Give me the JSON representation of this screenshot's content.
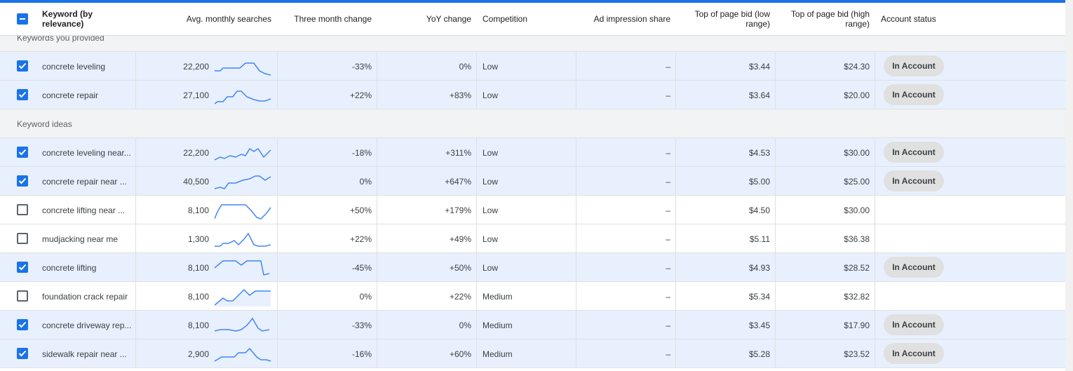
{
  "header": {
    "columns": [
      "Keyword (by relevance)",
      "Avg. monthly searches",
      "Three month change",
      "YoY change",
      "Competition",
      "Ad impression share",
      "Top of page bid (low range)",
      "Top of page bid (high range)",
      "Account status"
    ]
  },
  "sections": [
    {
      "title": "Keywords you provided",
      "rows": [
        {
          "selected": true,
          "keyword": "concrete leveling",
          "searches": "22,200",
          "three_month": "-33%",
          "yoy": "0%",
          "competition": "Low",
          "ad_share": "–",
          "bid_low": "$3.44",
          "bid_high": "$24.30",
          "status": "In Account"
        },
        {
          "selected": true,
          "keyword": "concrete repair",
          "searches": "27,100",
          "three_month": "+22%",
          "yoy": "+83%",
          "competition": "Low",
          "ad_share": "–",
          "bid_low": "$3.64",
          "bid_high": "$20.00",
          "status": "In Account"
        }
      ]
    },
    {
      "title": "Keyword ideas",
      "rows": [
        {
          "selected": true,
          "keyword": "concrete leveling near...",
          "searches": "22,200",
          "three_month": "-18%",
          "yoy": "+311%",
          "competition": "Low",
          "ad_share": "–",
          "bid_low": "$4.53",
          "bid_high": "$30.00",
          "status": "In Account"
        },
        {
          "selected": true,
          "keyword": "concrete repair near ...",
          "searches": "40,500",
          "three_month": "0%",
          "yoy": "+647%",
          "competition": "Low",
          "ad_share": "–",
          "bid_low": "$5.00",
          "bid_high": "$25.00",
          "status": "In Account"
        },
        {
          "selected": false,
          "keyword": "concrete lifting near ...",
          "searches": "8,100",
          "three_month": "+50%",
          "yoy": "+179%",
          "competition": "Low",
          "ad_share": "–",
          "bid_low": "$4.50",
          "bid_high": "$30.00"
        },
        {
          "selected": false,
          "keyword": "mudjacking near me",
          "searches": "1,300",
          "three_month": "+22%",
          "yoy": "+49%",
          "competition": "Low",
          "ad_share": "–",
          "bid_low": "$5.11",
          "bid_high": "$36.38"
        },
        {
          "selected": true,
          "keyword": "concrete lifting",
          "searches": "8,100",
          "three_month": "-45%",
          "yoy": "+50%",
          "competition": "Low",
          "ad_share": "–",
          "bid_low": "$4.93",
          "bid_high": "$28.52",
          "status": "In Account"
        },
        {
          "selected": false,
          "keyword": "foundation crack repair",
          "searches": "8,100",
          "three_month": "0%",
          "yoy": "+22%",
          "competition": "Medium",
          "ad_share": "–",
          "bid_low": "$5.34",
          "bid_high": "$32.82"
        },
        {
          "selected": true,
          "keyword": "concrete driveway rep...",
          "searches": "8,100",
          "three_month": "-33%",
          "yoy": "0%",
          "competition": "Medium",
          "ad_share": "–",
          "bid_low": "$3.45",
          "bid_high": "$17.90",
          "status": "In Account"
        },
        {
          "selected": true,
          "keyword": "sidewalk repair near ...",
          "searches": "2,900",
          "three_month": "-16%",
          "yoy": "+60%",
          "competition": "Medium",
          "ad_share": "–",
          "bid_low": "$5.28",
          "bid_high": "$23.52",
          "status": "In Account"
        }
      ]
    }
  ]
}
